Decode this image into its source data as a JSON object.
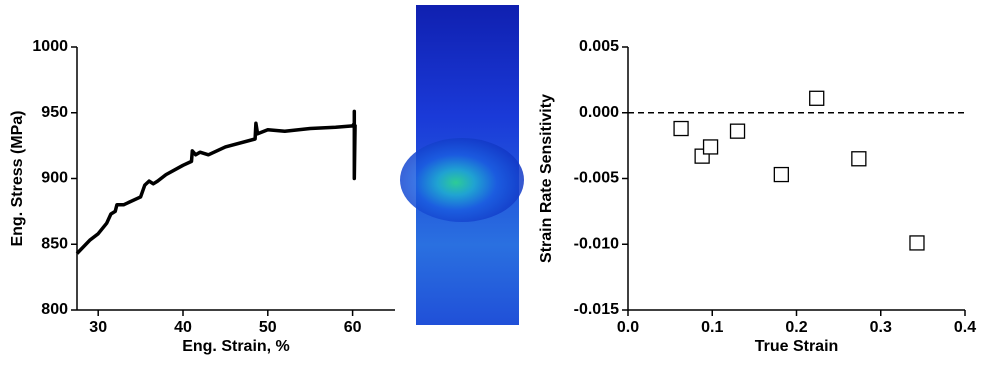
{
  "chart_data": [
    {
      "type": "line",
      "xlabel": "Eng. Strain, %",
      "ylabel": "Eng. Stress (MPa)",
      "x": [
        27.5,
        29,
        30,
        31,
        31.5,
        32,
        32.2,
        33,
        35,
        35.5,
        36,
        36.5,
        37,
        38,
        40,
        41,
        41.1,
        41.5,
        42,
        43,
        45,
        48.5,
        48.6,
        48.8,
        50,
        52,
        55,
        58,
        60,
        60.2,
        60.2,
        60.2,
        60.3
      ],
      "values": [
        843,
        853,
        858,
        866,
        873,
        875,
        880,
        880,
        886,
        895,
        898,
        896,
        898,
        903,
        910,
        913,
        921,
        918,
        920,
        918,
        924,
        930,
        942,
        934,
        937,
        936,
        938,
        939,
        940,
        942,
        951,
        900,
        941
      ],
      "color": "#000000",
      "xlim": [
        27.5,
        65
      ],
      "ylim": [
        800,
        1000
      ],
      "xticks": [
        30,
        40,
        50,
        60
      ],
      "yticks": [
        800,
        850,
        900,
        950,
        1000
      ]
    },
    {
      "type": "scatter",
      "xlabel": "True Strain",
      "ylabel": "Strain Rate Sensitivity",
      "x": [
        0.063,
        0.088,
        0.098,
        0.13,
        0.182,
        0.224,
        0.274,
        0.343
      ],
      "values": [
        -0.0012,
        -0.0033,
        -0.0026,
        -0.0014,
        -0.0047,
        0.0011,
        -0.0035,
        -0.0099
      ],
      "color": "#000000",
      "hline": 0,
      "xlim": [
        0,
        0.4
      ],
      "ylim": [
        -0.015,
        0.005
      ],
      "xticks": [
        {
          "value": 0,
          "label": "0.0"
        },
        {
          "value": 0.1,
          "label": "0.1"
        },
        {
          "value": 0.2,
          "label": "0.2"
        },
        {
          "value": 0.3,
          "label": "0.3"
        },
        {
          "value": 0.4,
          "label": "0.4"
        }
      ],
      "yticks": [
        {
          "value": -0.015,
          "label": "-0.015"
        },
        {
          "value": -0.01,
          "label": "-0.010"
        },
        {
          "value": -0.005,
          "label": "-0.005"
        },
        {
          "value": 0,
          "label": "0.000"
        },
        {
          "value": 0.005,
          "label": "0.005"
        }
      ]
    }
  ]
}
